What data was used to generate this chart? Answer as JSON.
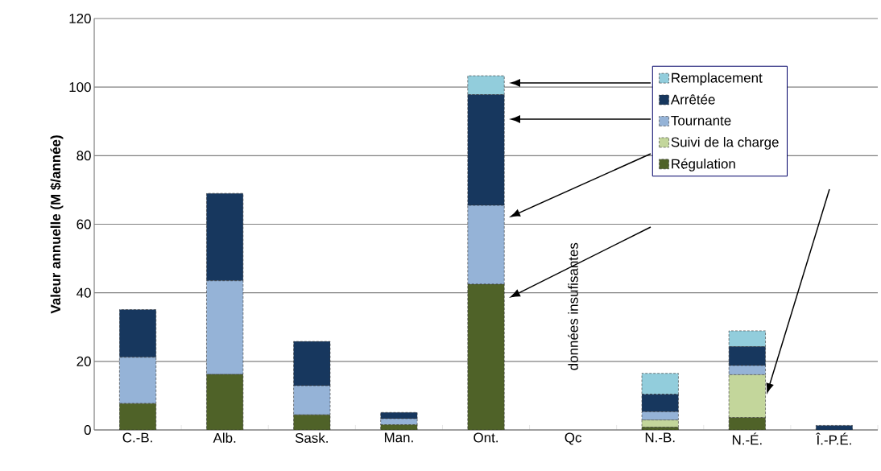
{
  "chart_data": {
    "type": "bar",
    "stacked": true,
    "ylabel": "Valeur annuelle (M $/année)",
    "categories": [
      "C.-B.",
      "Alb.",
      "Sask.",
      "Man.",
      "Ont.",
      "Qc",
      "N.-B.",
      "N.-É.",
      "Î.-P.É."
    ],
    "series": [
      {
        "name": "Régulation",
        "color": "#4f6228",
        "values": [
          7.7,
          16.2,
          4.4,
          1.5,
          42.5,
          null,
          0.8,
          3.6,
          null
        ]
      },
      {
        "name": "Suivi de la charge",
        "color": "#c3d69b",
        "values": [
          0,
          0,
          0,
          0,
          0,
          null,
          2.1,
          12.5,
          null
        ]
      },
      {
        "name": "Tournante",
        "color": "#95b3d7",
        "values": [
          13.5,
          27.3,
          8.5,
          1.8,
          23.0,
          null,
          2.4,
          2.7,
          null
        ]
      },
      {
        "name": "Arrêtée",
        "color": "#17375e",
        "values": [
          13.9,
          25.5,
          12.9,
          1.8,
          32.3,
          null,
          5.1,
          5.5,
          1.3
        ]
      },
      {
        "name": "Remplacement",
        "color": "#92cddc",
        "values": [
          0,
          0,
          0,
          0,
          5.5,
          null,
          6.1,
          4.6,
          null
        ]
      }
    ],
    "annotations": [
      "données insufisantes"
    ],
    "ylim": [
      0,
      120
    ],
    "yticks": [
      0,
      20,
      40,
      60,
      80,
      100,
      120
    ],
    "grid": "y",
    "legend": "top right"
  }
}
